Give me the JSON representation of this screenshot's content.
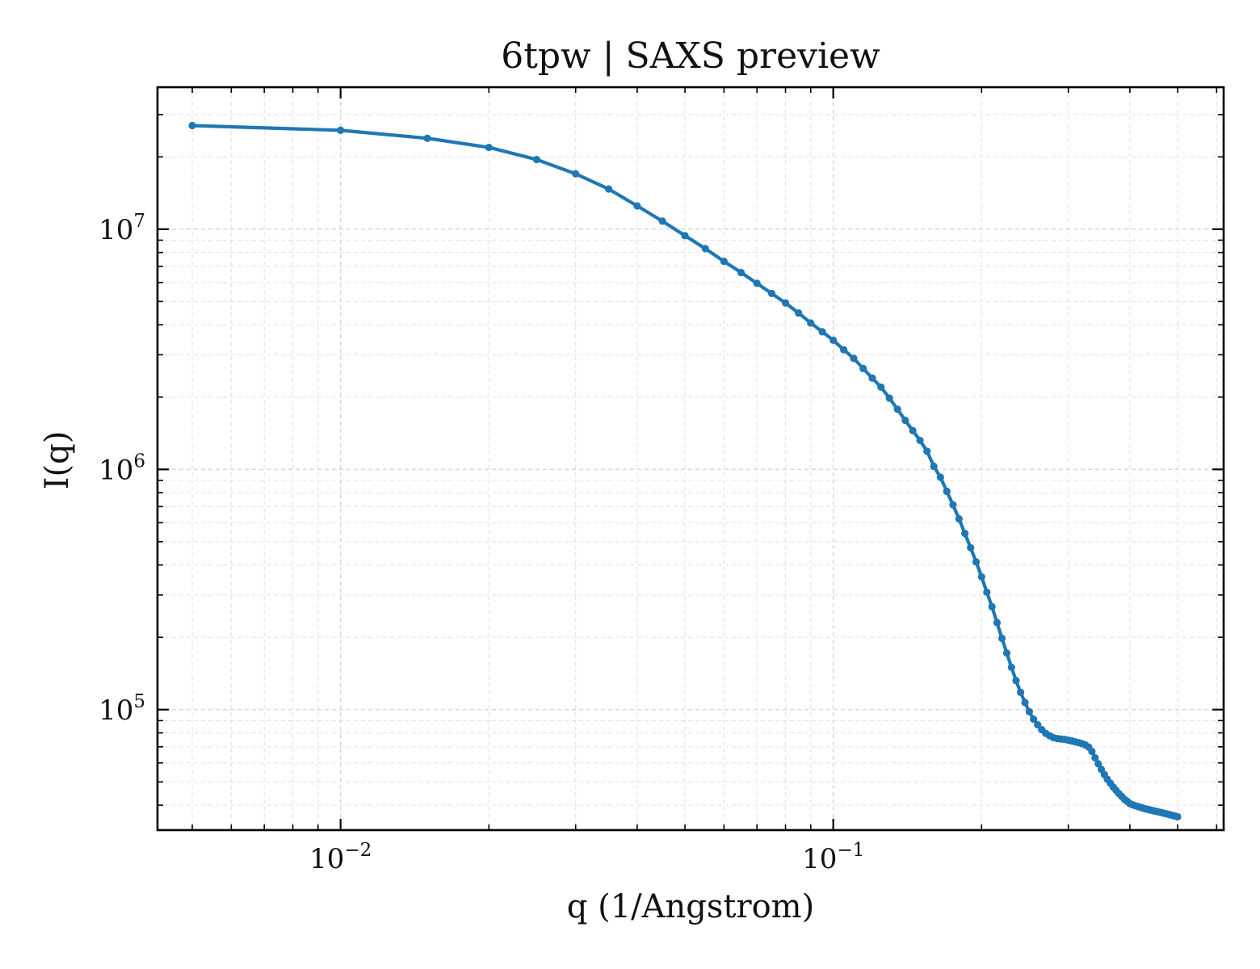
{
  "chart_data": {
    "type": "line",
    "title": "6tpw | SAXS preview",
    "xlabel": "q (1/Angstrom)",
    "ylabel": "I(q)",
    "xscale": "log",
    "yscale": "log",
    "xlim": [
      0.00425,
      0.62
    ],
    "ylim": [
      31500,
      39000000
    ],
    "x_ticks": [
      {
        "value": 0.01,
        "base": "10",
        "exp": "−2"
      },
      {
        "value": 0.1,
        "base": "10",
        "exp": "−1"
      }
    ],
    "y_ticks": [
      {
        "value": 100000,
        "base": "10",
        "exp": "5"
      },
      {
        "value": 1000000,
        "base": "10",
        "exp": "6"
      },
      {
        "value": 10000000,
        "base": "10",
        "exp": "7"
      }
    ],
    "grid": true,
    "color": "#1f77b4",
    "series": [
      {
        "x": [
          0.005,
          0.01,
          0.015,
          0.02,
          0.025,
          0.03,
          0.035,
          0.04,
          0.045,
          0.05,
          0.055,
          0.06,
          0.065,
          0.07,
          0.075,
          0.08,
          0.085,
          0.09,
          0.095,
          0.1,
          0.105,
          0.11,
          0.115,
          0.12,
          0.125,
          0.13,
          0.135,
          0.14,
          0.145,
          0.15,
          0.155,
          0.16,
          0.165,
          0.17,
          0.175,
          0.18,
          0.185,
          0.19,
          0.195,
          0.2,
          0.205,
          0.21,
          0.215,
          0.22,
          0.225,
          0.23,
          0.235,
          0.24,
          0.245,
          0.25,
          0.255,
          0.26,
          0.265,
          0.27,
          0.275,
          0.28,
          0.285,
          0.29,
          0.295,
          0.3,
          0.305,
          0.31,
          0.315,
          0.32,
          0.325,
          0.33,
          0.335,
          0.34,
          0.345,
          0.35,
          0.355,
          0.36,
          0.365,
          0.37,
          0.375,
          0.38,
          0.385,
          0.39,
          0.395,
          0.4,
          0.405,
          0.41,
          0.415,
          0.42,
          0.425,
          0.43,
          0.435,
          0.44,
          0.445,
          0.45,
          0.455,
          0.46,
          0.465,
          0.47,
          0.475,
          0.48,
          0.485,
          0.49,
          0.495,
          0.5
        ],
        "y": [
          27000000,
          25800000,
          23900000,
          21900000,
          19500000,
          17000000,
          14700000,
          12500000,
          10800000,
          9400000,
          8300000,
          7350000,
          6600000,
          5950000,
          5400000,
          4930000,
          4480000,
          4070000,
          3740000,
          3450000,
          3150000,
          2900000,
          2630000,
          2400000,
          2200000,
          1980000,
          1780000,
          1600000,
          1450000,
          1320000,
          1190000,
          1030000,
          928000,
          810000,
          712000,
          622000,
          541000,
          472000,
          412000,
          357000,
          308000,
          268000,
          230000,
          198000,
          172000,
          150000,
          132000,
          118000,
          107000,
          98000,
          91200,
          86400,
          82500,
          79600,
          77800,
          76400,
          75800,
          75400,
          75100,
          74600,
          74000,
          73400,
          72800,
          72100,
          71200,
          69800,
          67000,
          63000,
          59500,
          56400,
          53700,
          51300,
          49400,
          47600,
          46100,
          44700,
          43500,
          42300,
          41500,
          40600,
          40200,
          39800,
          39500,
          39200,
          38900,
          38600,
          38400,
          38200,
          38000,
          37800,
          37600,
          37400,
          37200,
          37000,
          36800,
          36600,
          36400,
          36200,
          36000,
          35800
        ]
      }
    ]
  }
}
